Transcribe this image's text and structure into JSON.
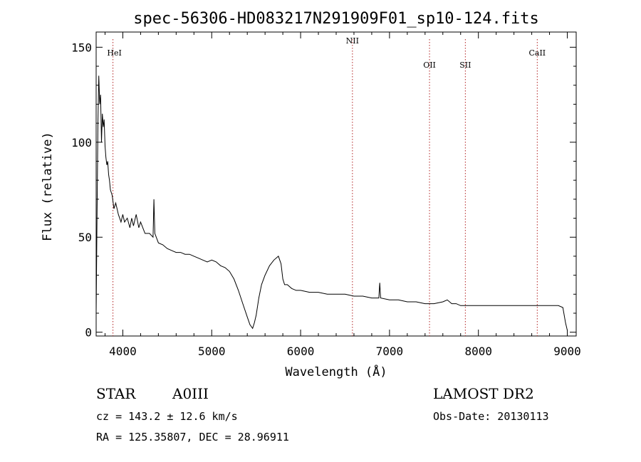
{
  "chart_data": {
    "type": "line",
    "title": "spec-56306-HD083217N291909F01_sp10-124.fits",
    "xlabel": "Wavelength (Å)",
    "ylabel": "Flux (relative)",
    "xlim": [
      3700,
      9100
    ],
    "ylim": [
      -2,
      158
    ],
    "x_ticks": [
      4000,
      5000,
      6000,
      7000,
      8000,
      9000
    ],
    "y_ticks": [
      0,
      50,
      100,
      150
    ],
    "grid": false,
    "legend": "none",
    "series": [
      {
        "x": [
          3700,
          3710,
          3720,
          3730,
          3740,
          3750,
          3760,
          3770,
          3780,
          3790,
          3800,
          3810,
          3820,
          3830,
          3840,
          3850,
          3860,
          3880,
          3900,
          3920,
          3950,
          3980,
          4000,
          4020,
          4050,
          4080,
          4100,
          4120,
          4150,
          4180,
          4200,
          4250,
          4300,
          4340,
          4350,
          4360,
          4400,
          4450,
          4500,
          4550,
          4600,
          4650,
          4700,
          4750,
          4800,
          4850,
          4900,
          4950,
          5000,
          5050,
          5100,
          5150,
          5200,
          5250,
          5300,
          5350,
          5400,
          5430,
          5460,
          5480,
          5500,
          5530,
          5560,
          5600,
          5650,
          5700,
          5750,
          5780,
          5800,
          5820,
          5850,
          5900,
          5950,
          6000,
          6100,
          6200,
          6300,
          6400,
          6500,
          6600,
          6700,
          6800,
          6880,
          6890,
          6900,
          7000,
          7100,
          7200,
          7300,
          7400,
          7450,
          7500,
          7600,
          7650,
          7700,
          7750,
          7800,
          7900,
          8000,
          8100,
          8200,
          8300,
          8400,
          8500,
          8600,
          8700,
          8800,
          8900,
          8950,
          8980,
          9000
        ],
        "y": [
          10,
          60,
          110,
          135,
          120,
          125,
          100,
          115,
          108,
          112,
          98,
          92,
          88,
          90,
          83,
          80,
          75,
          72,
          65,
          68,
          62,
          58,
          62,
          58,
          60,
          55,
          60,
          56,
          62,
          55,
          58,
          52,
          52,
          50,
          70,
          52,
          47,
          46,
          44,
          43,
          42,
          42,
          41,
          41,
          40,
          39,
          38,
          37,
          38,
          37,
          35,
          34,
          32,
          28,
          22,
          15,
          8,
          4,
          2,
          5,
          9,
          18,
          25,
          30,
          35,
          38,
          40,
          36,
          28,
          25,
          25,
          23,
          22,
          22,
          21,
          21,
          20,
          20,
          20,
          19,
          19,
          18,
          18,
          26,
          18,
          17,
          17,
          16,
          16,
          15,
          15,
          15,
          16,
          17,
          15,
          15,
          14,
          14,
          14,
          14,
          14,
          14,
          14,
          14,
          14,
          14,
          14,
          14,
          13,
          5,
          1
        ]
      }
    ],
    "line_markers": [
      {
        "label": "HeI",
        "x": 3889
      },
      {
        "label": "NII",
        "x": 6583
      },
      {
        "label": "OII",
        "x": 7450
      },
      {
        "label": "SII",
        "x": 7853
      },
      {
        "label": "CaII",
        "x": 8662
      }
    ]
  },
  "footer": {
    "object_class": "STAR",
    "subclass": "A0III",
    "survey": "LAMOST DR2",
    "cz_text": "cz = 143.2 ± 12.6 km/s",
    "obs_date": "Obs-Date: 20130113",
    "coords": "RA = 125.35807, DEC =  28.96911"
  },
  "colors": {
    "axis": "#000000",
    "spectrum": "#000000",
    "marker_line": "#b22222"
  }
}
